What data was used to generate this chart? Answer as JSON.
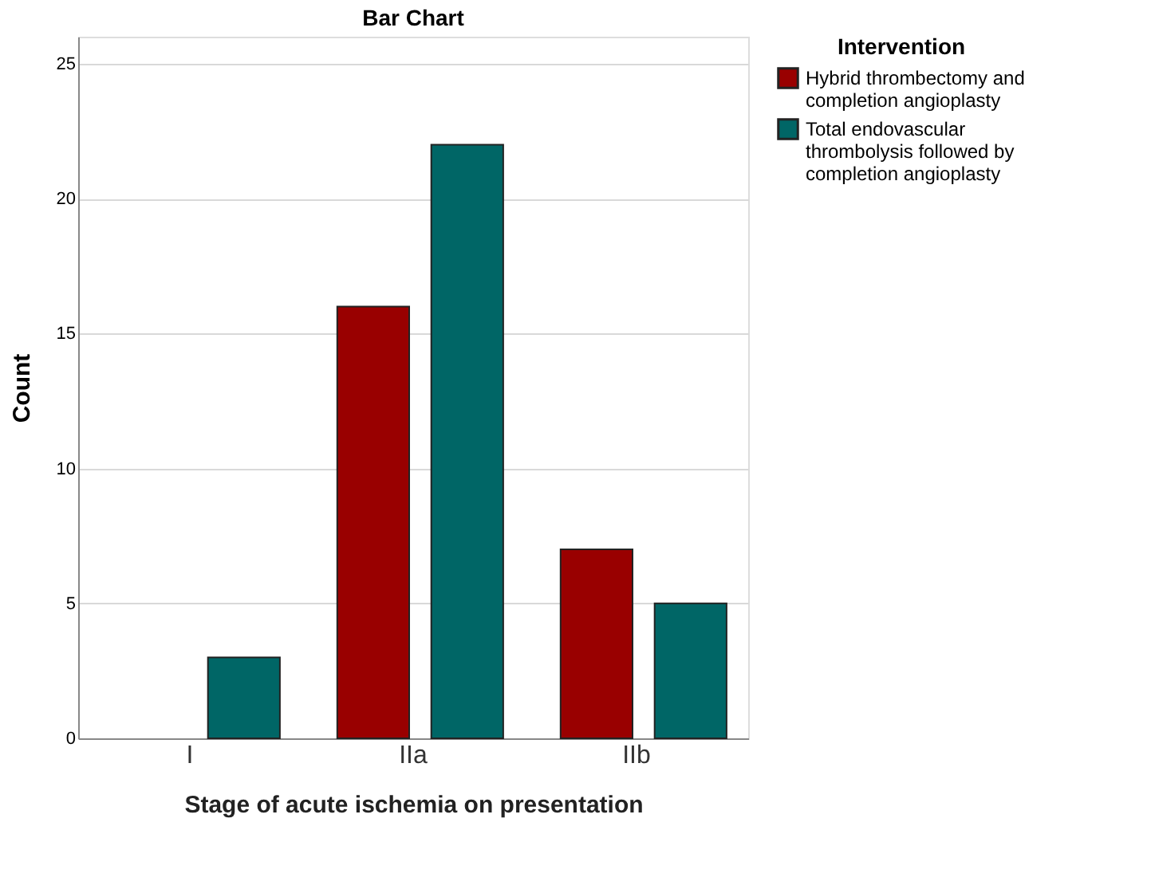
{
  "chart_data": {
    "type": "bar",
    "title": "Bar Chart",
    "xlabel": "Stage of acute ischemia on presentation",
    "ylabel": "Count",
    "legend_title": "Intervention",
    "categories": [
      "I",
      "IIa",
      "IIb"
    ],
    "series": [
      {
        "name": "Hybrid thrombectomy and completion angioplasty",
        "color": "#990000",
        "values": [
          null,
          16,
          7
        ]
      },
      {
        "name": "Total endovascular thrombolysis followed by completion angioplasty",
        "color": "#006666",
        "values": [
          3,
          22,
          5
        ]
      }
    ],
    "ylim": [
      0,
      26
    ],
    "yticks": [
      0,
      5,
      10,
      15,
      20,
      25
    ],
    "grid": "y",
    "legend": "top right"
  }
}
